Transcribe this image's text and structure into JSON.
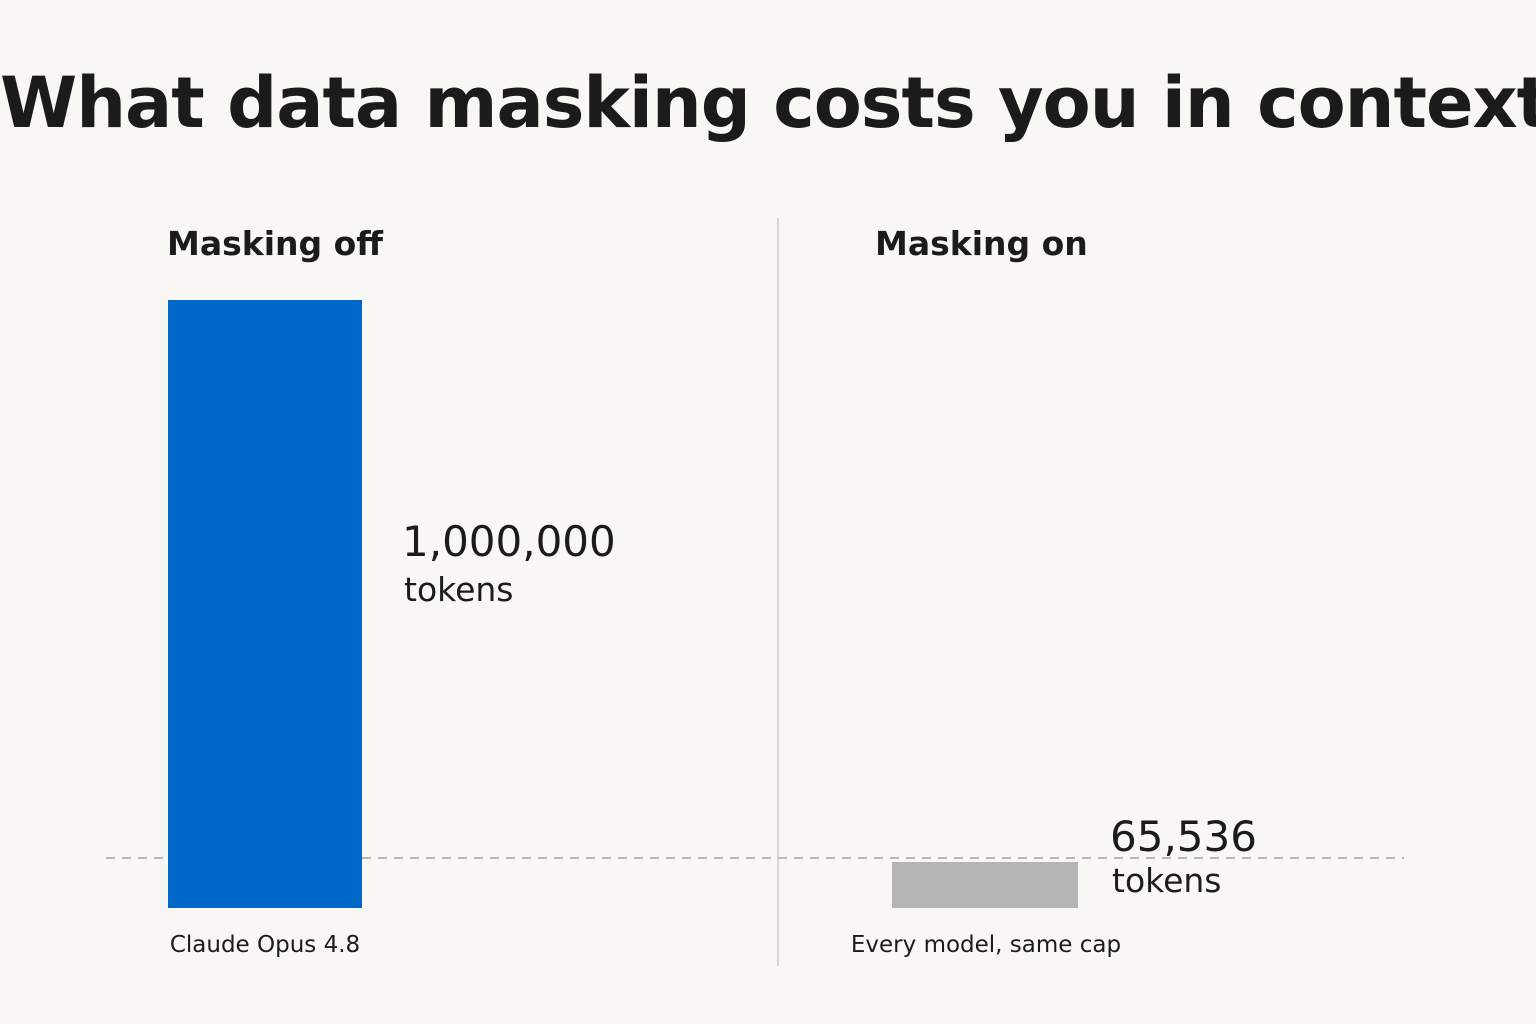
{
  "title": "What data masking costs you in context",
  "panels": {
    "left_heading": "Masking off",
    "right_heading": "Masking on"
  },
  "chart_data": [
    {
      "type": "bar",
      "title": "Masking off",
      "categories": [
        "Claude Opus 4.8"
      ],
      "values": [
        1000000
      ],
      "value_labels": [
        "1,000,000"
      ],
      "unit": "tokens",
      "color": "#0068c8"
    },
    {
      "type": "bar",
      "title": "Masking on",
      "categories": [
        "Every model, same cap"
      ],
      "values": [
        65536
      ],
      "value_labels": [
        "65,536"
      ],
      "unit": "tokens",
      "color": "#b5b5b5"
    }
  ],
  "reference_line": {
    "value": 65536,
    "style": "dashed"
  },
  "colors": {
    "background": "#f8f7f3",
    "masking_off_bar": "#0068c8",
    "masking_on_bar": "#b5b5b5",
    "reference_line": "#b8b8b8",
    "divider": "#d6d6d6",
    "text": "#1b1b1b"
  }
}
